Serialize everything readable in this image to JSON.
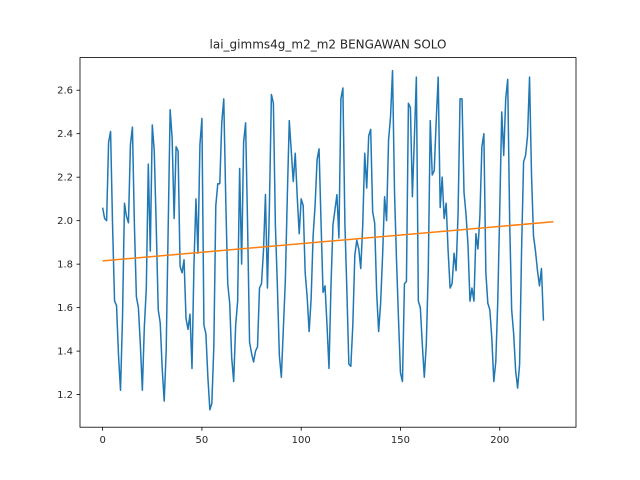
{
  "chart_data": {
    "type": "line",
    "title": "lai_gimms4g_m2_m2 BENGAWAN SOLO",
    "xlabel": "",
    "ylabel": "",
    "xlim": [
      -11.4,
      238.4
    ],
    "ylim": [
      1.05,
      2.75
    ],
    "xticks": [
      0,
      50,
      100,
      150,
      200
    ],
    "yticks": [
      1.2,
      1.4,
      1.6,
      1.8,
      2.0,
      2.2,
      2.4,
      2.6
    ],
    "xtick_labels": [
      "0",
      "50",
      "100",
      "150",
      "200"
    ],
    "ytick_labels": [
      "1.2",
      "1.4",
      "1.6",
      "1.8",
      "2.0",
      "2.2",
      "2.4",
      "2.6"
    ],
    "grid": false,
    "legend": "none",
    "series": [
      {
        "color": "#1f77b4",
        "values": [
          2.06,
          2.01,
          2.0,
          2.36,
          2.41,
          1.98,
          1.63,
          1.61,
          1.38,
          1.22,
          1.55,
          2.08,
          2.02,
          1.99,
          2.35,
          2.43,
          1.98,
          1.65,
          1.6,
          1.43,
          1.22,
          1.51,
          1.69,
          2.26,
          1.86,
          2.44,
          2.32,
          1.97,
          1.59,
          1.53,
          1.32,
          1.17,
          1.4,
          1.96,
          2.51,
          2.38,
          2.01,
          2.34,
          2.32,
          1.79,
          1.76,
          1.82,
          1.55,
          1.5,
          1.57,
          1.32,
          1.8,
          2.1,
          1.85,
          2.35,
          2.47,
          1.52,
          1.48,
          1.28,
          1.13,
          1.16,
          1.42,
          2.07,
          2.17,
          2.17,
          2.45,
          2.56,
          2.1,
          1.71,
          1.62,
          1.37,
          1.26,
          1.52,
          1.63,
          2.24,
          1.8,
          2.36,
          2.45,
          1.98,
          1.44,
          1.39,
          1.35,
          1.4,
          1.42,
          1.69,
          1.71,
          1.86,
          2.12,
          1.69,
          2.07,
          2.58,
          2.54,
          1.98,
          1.7,
          1.38,
          1.28,
          1.5,
          1.72,
          2.11,
          2.46,
          2.32,
          2.18,
          2.31,
          2.11,
          1.94,
          2.1,
          2.07,
          1.76,
          1.65,
          1.49,
          1.64,
          1.93,
          2.07,
          2.28,
          2.33,
          1.99,
          1.67,
          1.7,
          1.52,
          1.32,
          1.7,
          1.98,
          2.05,
          2.12,
          1.92,
          2.56,
          2.61,
          1.99,
          1.68,
          1.34,
          1.33,
          1.52,
          1.84,
          1.91,
          1.87,
          1.78,
          1.98,
          2.31,
          2.15,
          2.39,
          2.42,
          2.04,
          1.99,
          1.67,
          1.49,
          1.62,
          1.84,
          2.11,
          2.0,
          2.37,
          2.48,
          2.69,
          2.13,
          1.82,
          1.55,
          1.3,
          1.26,
          1.71,
          1.72,
          2.54,
          2.52,
          2.11,
          2.38,
          2.66,
          1.63,
          1.6,
          1.43,
          1.28,
          1.43,
          1.77,
          2.46,
          2.21,
          2.23,
          2.46,
          2.66,
          2.06,
          2.2,
          2.01,
          2.08,
          1.86,
          1.69,
          1.71,
          1.85,
          1.77,
          2.03,
          2.56,
          2.56,
          2.13,
          2.03,
          1.89,
          1.63,
          1.69,
          1.63,
          1.94,
          1.87,
          2.02,
          2.34,
          2.4,
          1.76,
          1.62,
          1.59,
          1.46,
          1.26,
          1.35,
          1.63,
          2.05,
          2.5,
          2.3,
          2.56,
          2.65,
          1.99,
          1.59,
          1.48,
          1.31,
          1.23,
          1.34,
          1.87,
          2.27,
          2.3,
          2.39,
          2.66,
          2.21,
          1.93,
          1.86,
          1.77,
          1.7,
          1.78,
          1.54
        ]
      },
      {
        "color": "#ff7f0e",
        "x": [
          0,
          227
        ],
        "values": [
          1.815,
          1.995
        ]
      }
    ]
  }
}
